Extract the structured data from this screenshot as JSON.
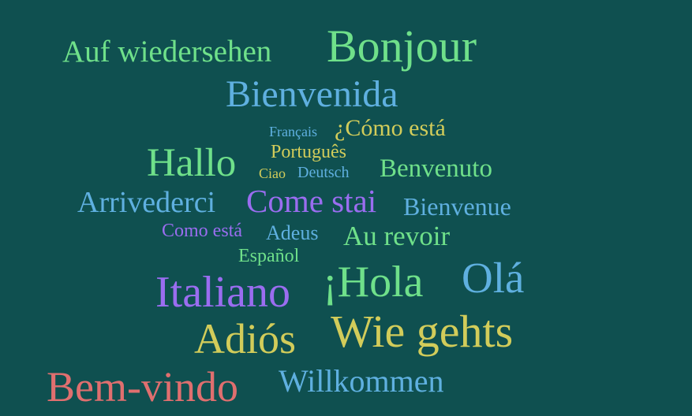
{
  "colors": {
    "background": "#0f5050",
    "green": "#6fe08a",
    "blue": "#5fb0e0",
    "yellow": "#d2cc5a",
    "purple": "#9a6df0",
    "red": "#e06f6f"
  },
  "words": [
    {
      "text": "Auf wiedersehen",
      "color": "#6fe08a"
    },
    {
      "text": "Bonjour",
      "color": "#6fe08a"
    },
    {
      "text": "Bienvenida",
      "color": "#5fb0e0"
    },
    {
      "text": "Français",
      "color": "#5fb0e0"
    },
    {
      "text": "¿Cómo está",
      "color": "#d2cc5a"
    },
    {
      "text": "Português",
      "color": "#d2cc5a"
    },
    {
      "text": "Hallo",
      "color": "#6fe08a"
    },
    {
      "text": "Ciao",
      "color": "#d2cc5a"
    },
    {
      "text": "Deutsch",
      "color": "#5fb0e0"
    },
    {
      "text": "Benvenuto",
      "color": "#6fe08a"
    },
    {
      "text": "Arrivederci",
      "color": "#5fb0e0"
    },
    {
      "text": "Come stai",
      "color": "#9a6df0"
    },
    {
      "text": "Bienvenue",
      "color": "#5fb0e0"
    },
    {
      "text": "Como está",
      "color": "#9a6df0"
    },
    {
      "text": "Adeus",
      "color": "#5fb0e0"
    },
    {
      "text": "Au revoir",
      "color": "#6fe08a"
    },
    {
      "text": "Español",
      "color": "#6fe08a"
    },
    {
      "text": "Italiano",
      "color": "#9a6df0"
    },
    {
      "text": "¡Hola",
      "color": "#6fe08a"
    },
    {
      "text": "Olá",
      "color": "#5fb0e0"
    },
    {
      "text": "Adiós",
      "color": "#d2cc5a"
    },
    {
      "text": "Wie gehts",
      "color": "#d2cc5a"
    },
    {
      "text": "Bem-vindo",
      "color": "#e06f6f"
    },
    {
      "text": "Willkommen",
      "color": "#5fb0e0"
    }
  ]
}
